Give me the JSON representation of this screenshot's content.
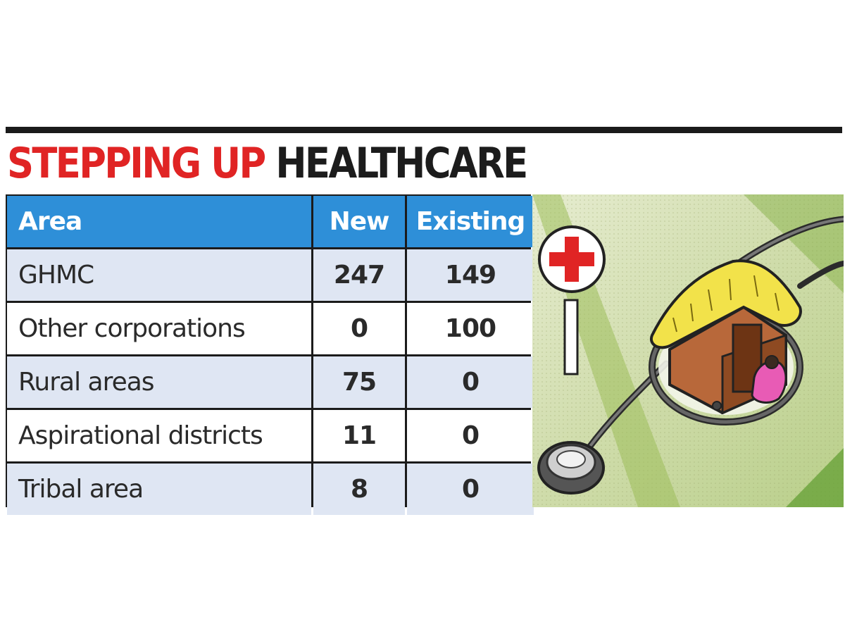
{
  "headline": {
    "part1": "STEPPING UP",
    "part2": "HEALTHCARE"
  },
  "table": {
    "headers": [
      "Area",
      "New",
      "Existing"
    ],
    "rows": [
      {
        "area": "GHMC",
        "new": "247",
        "existing": "149"
      },
      {
        "area": "Other corporations",
        "new": "0",
        "existing": "100"
      },
      {
        "area": "Rural areas",
        "new": "75",
        "existing": "0"
      },
      {
        "area": "Aspirational districts",
        "new": "11",
        "existing": "0"
      },
      {
        "area": "Tribal area",
        "new": "8",
        "existing": "0"
      }
    ]
  },
  "colors": {
    "headline_red": "#e02424",
    "header_blue": "#2e8fd8",
    "row_alt": "#dfe6f3"
  },
  "illustration": {
    "icons": [
      "red-cross-sign-icon",
      "stethoscope-icon",
      "hut-icon",
      "person-icon"
    ]
  }
}
